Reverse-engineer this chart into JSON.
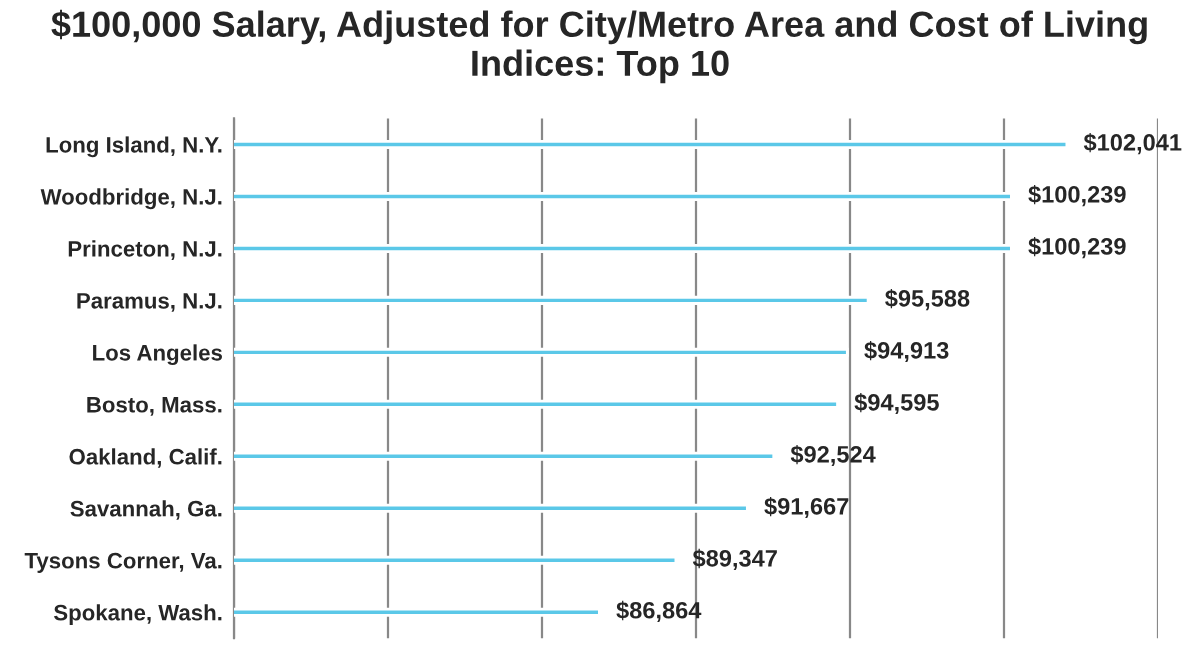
{
  "chart_data": {
    "type": "bar",
    "orientation": "horizontal",
    "title": "$100,000 Salary, Adjusted for City/Metro Area and Cost of Living Indices: Top 10",
    "categories": [
      "Long Island, N.Y.",
      "Woodbridge, N.J.",
      "Princeton, N.J.",
      "Paramus, N.J.",
      "Los Angeles",
      "Bosto, Mass.",
      "Oakland, Calif.",
      "Savannah, Ga.",
      "Tysons Corner, Va.",
      "Spokane, Wash."
    ],
    "values": [
      102041,
      100239,
      100239,
      95588,
      94913,
      94595,
      92524,
      91667,
      89347,
      86864
    ],
    "value_labels": [
      "$102,041",
      "$100,239",
      "$100,239",
      "$95,588",
      "$94,913",
      "$94,595",
      "$92,524",
      "$91,667",
      "$89,347",
      "$86,864"
    ],
    "color": "#5bc8e8",
    "xlim": [
      75000,
      105000
    ],
    "xticks": [
      {
        "value": 75000,
        "label": null
      },
      {
        "value": 80000,
        "label": null
      },
      {
        "value": 85000,
        "label": null
      },
      {
        "value": 90000,
        "label": null
      },
      {
        "value": 95000,
        "label": null
      },
      {
        "value": 100000,
        "label": null
      },
      {
        "value": 105000,
        "label": null
      }
    ],
    "grid": "x",
    "legend": false
  }
}
